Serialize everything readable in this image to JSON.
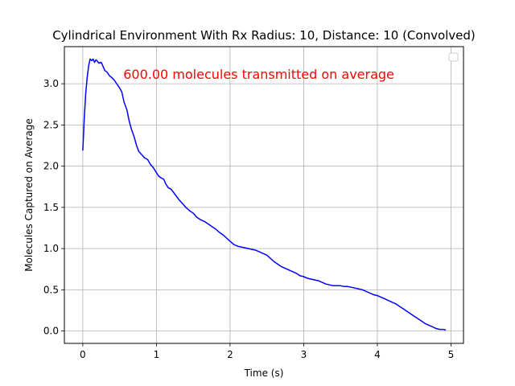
{
  "chart_data": {
    "type": "line",
    "title": "Cylindrical Environment With Rx Radius: 10, Distance: 10 (Convolved)",
    "xlabel": "Time (s)",
    "ylabel": "Molecules Captured on Average",
    "xlim": [
      -0.25,
      5.17
    ],
    "ylim": [
      -0.15,
      3.45
    ],
    "xticks": [
      0,
      1,
      2,
      3,
      4,
      5
    ],
    "xtick_labels": [
      "0",
      "1",
      "2",
      "3",
      "4",
      "5"
    ],
    "yticks": [
      0.0,
      0.5,
      1.0,
      1.5,
      2.0,
      2.5,
      3.0
    ],
    "ytick_labels": [
      "0.0",
      "0.5",
      "1.0",
      "1.5",
      "2.0",
      "2.5",
      "3.0"
    ],
    "grid": true,
    "legend": "upper-right (empty)",
    "annotation": {
      "text": "600.00 molecules transmitted on average",
      "color": "#ff0000",
      "x": 0.55,
      "y": 3.12
    },
    "series": [
      {
        "color": "#0000ff",
        "x": [
          0.0,
          0.02,
          0.04,
          0.06,
          0.08,
          0.1,
          0.12,
          0.14,
          0.16,
          0.18,
          0.2,
          0.22,
          0.25,
          0.28,
          0.3,
          0.33,
          0.36,
          0.4,
          0.43,
          0.46,
          0.5,
          0.53,
          0.56,
          0.6,
          0.63,
          0.66,
          0.7,
          0.73,
          0.76,
          0.8,
          0.84,
          0.88,
          0.92,
          0.96,
          1.0,
          1.03,
          1.06,
          1.1,
          1.13,
          1.16,
          1.2,
          1.25,
          1.3,
          1.35,
          1.4,
          1.45,
          1.5,
          1.55,
          1.6,
          1.65,
          1.7,
          1.75,
          1.8,
          1.85,
          1.9,
          1.95,
          2.0,
          2.05,
          2.1,
          2.15,
          2.2,
          2.25,
          2.3,
          2.35,
          2.4,
          2.45,
          2.5,
          2.55,
          2.6,
          2.65,
          2.7,
          2.75,
          2.8,
          2.85,
          2.9,
          2.95,
          3.0,
          3.05,
          3.1,
          3.15,
          3.2,
          3.25,
          3.3,
          3.35,
          3.4,
          3.45,
          3.5,
          3.55,
          3.6,
          3.65,
          3.7,
          3.75,
          3.8,
          3.85,
          3.9,
          3.95,
          4.0,
          4.05,
          4.1,
          4.15,
          4.2,
          4.25,
          4.3,
          4.35,
          4.4,
          4.45,
          4.5,
          4.55,
          4.6,
          4.65,
          4.7,
          4.75,
          4.8,
          4.85,
          4.9,
          4.93
        ],
        "y": [
          2.19,
          2.58,
          2.88,
          3.08,
          3.22,
          3.3,
          3.28,
          3.3,
          3.26,
          3.29,
          3.27,
          3.25,
          3.26,
          3.2,
          3.16,
          3.14,
          3.1,
          3.07,
          3.04,
          3.0,
          2.95,
          2.9,
          2.78,
          2.68,
          2.55,
          2.45,
          2.35,
          2.25,
          2.18,
          2.14,
          2.1,
          2.08,
          2.02,
          1.98,
          1.92,
          1.88,
          1.86,
          1.84,
          1.78,
          1.74,
          1.72,
          1.66,
          1.6,
          1.55,
          1.5,
          1.46,
          1.43,
          1.38,
          1.35,
          1.33,
          1.3,
          1.27,
          1.24,
          1.2,
          1.17,
          1.13,
          1.09,
          1.05,
          1.03,
          1.02,
          1.01,
          1.0,
          0.99,
          0.98,
          0.96,
          0.94,
          0.92,
          0.88,
          0.84,
          0.81,
          0.78,
          0.76,
          0.74,
          0.72,
          0.7,
          0.67,
          0.66,
          0.64,
          0.63,
          0.62,
          0.61,
          0.59,
          0.57,
          0.56,
          0.55,
          0.55,
          0.55,
          0.54,
          0.54,
          0.53,
          0.52,
          0.51,
          0.5,
          0.48,
          0.46,
          0.44,
          0.43,
          0.41,
          0.39,
          0.37,
          0.35,
          0.33,
          0.3,
          0.27,
          0.24,
          0.21,
          0.18,
          0.15,
          0.12,
          0.09,
          0.07,
          0.05,
          0.03,
          0.02,
          0.02,
          0.01
        ]
      }
    ]
  }
}
